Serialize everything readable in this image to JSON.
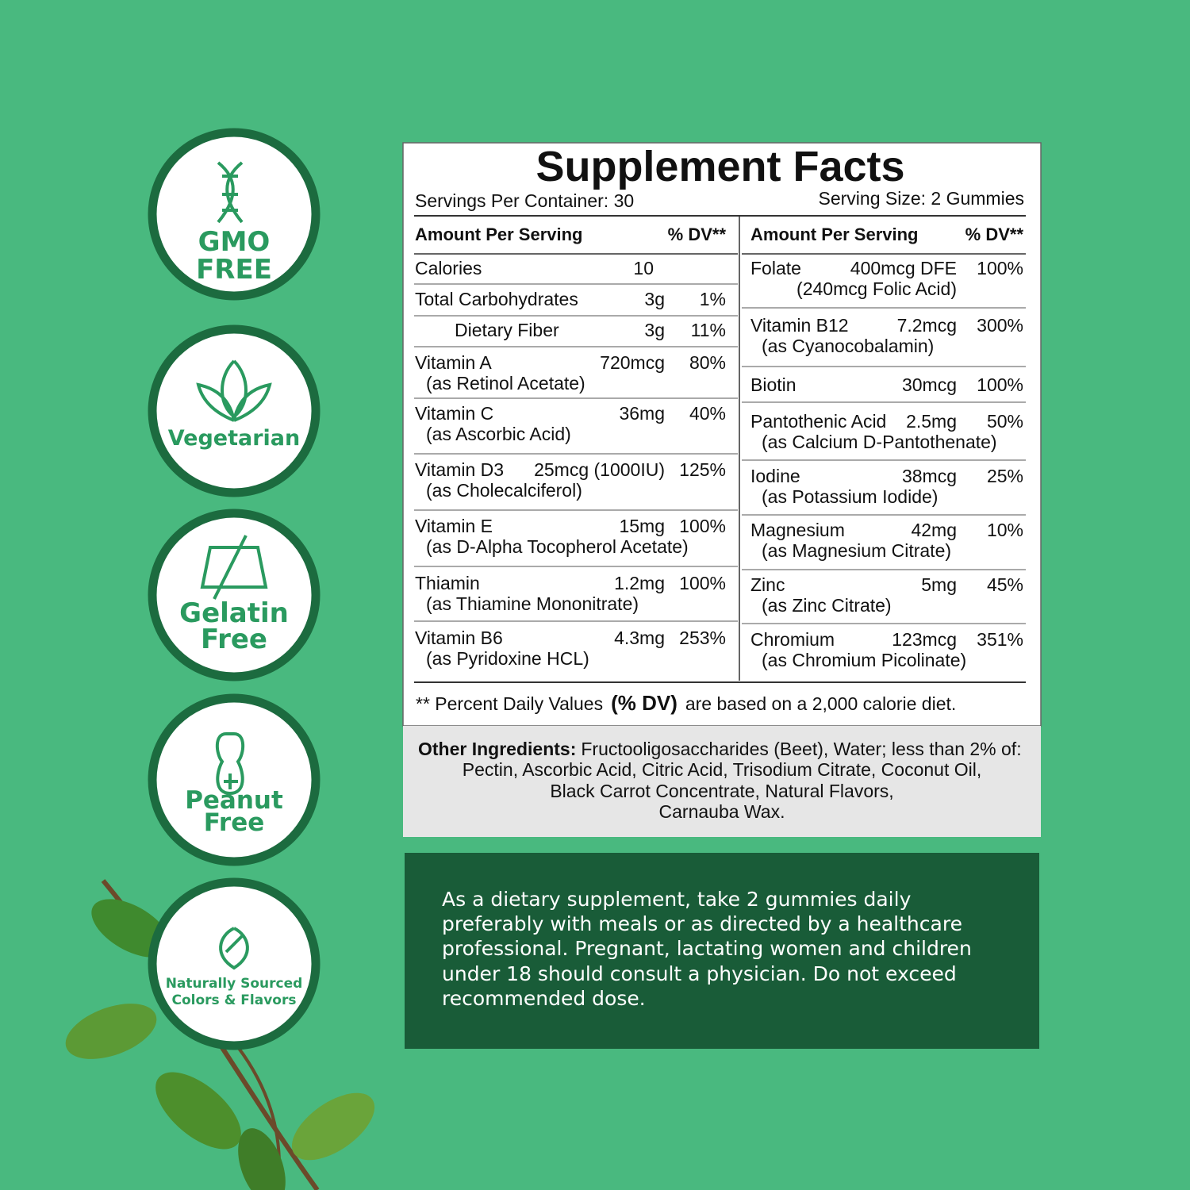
{
  "badges": [
    [
      "GMO",
      "FREE"
    ],
    [
      "Vegetarian"
    ],
    [
      "Gelatin",
      "Free"
    ],
    [
      "Peanut",
      "Free"
    ],
    [
      "Naturally Sourced",
      "Colors & Flavors"
    ]
  ],
  "facts": {
    "title": "Supplement Facts",
    "servings": "Servings Per Container: 30",
    "serving_size": "Serving Size: 2 Gummies",
    "columns": [
      {
        "header": [
          "Amount Per Serving",
          "% DV**"
        ],
        "rows": [
          {
            "name": "Calories",
            "amount": "10"
          },
          {
            "name": "Total Carbohydrates",
            "amount": "3g",
            "dv": "1%"
          },
          {
            "name": "Dietary Fiber",
            "amount": "3g",
            "dv": "11%"
          },
          {
            "name": "Vitamin A",
            "amount": "720mcg",
            "dv": "80%",
            "sub": "(as Retinol Acetate)"
          },
          {
            "name": "Vitamin C",
            "amount": "36mg",
            "dv": "40%",
            "sub": "(as Ascorbic Acid)"
          },
          {
            "name": "Vitamin D3",
            "amount": "25mcg (1000IU)",
            "dv": "125%",
            "sub": "(as Cholecalciferol)"
          },
          {
            "name": "Vitamin E",
            "amount": "15mg",
            "dv": "100%",
            "sub": "(as D-Alpha Tocopherol Acetate)"
          },
          {
            "name": "Thiamin",
            "amount": "1.2mg",
            "dv": "100%",
            "sub": "(as Thiamine Mononitrate)"
          },
          {
            "name": "Vitamin B6",
            "amount": "4.3mg",
            "dv": "253%",
            "sub": "(as Pyridoxine HCL)"
          }
        ]
      },
      {
        "header": [
          "Amount Per Serving",
          "% DV**"
        ],
        "rows": [
          {
            "name": "Folate",
            "amount": "400mcg DFE",
            "dv": "100%",
            "sub": "(240mcg Folic Acid)"
          },
          {
            "name": "Vitamin B12",
            "amount": "7.2mcg",
            "dv": "300%",
            "sub": "(as Cyanocobalamin)"
          },
          {
            "name": "Biotin",
            "amount": "30mcg",
            "dv": "100%"
          },
          {
            "name": "Pantothenic Acid",
            "amount": "2.5mg",
            "dv": "50%",
            "sub": "(as Calcium D-Pantothenate)"
          },
          {
            "name": "Iodine",
            "amount": "38mcg",
            "dv": "25%",
            "sub": "(as Potassium Iodide)"
          },
          {
            "name": "Magnesium",
            "amount": "42mg",
            "dv": "10%",
            "sub": "(as Magnesium Citrate)"
          },
          {
            "name": "Zinc",
            "amount": "5mg",
            "dv": "45%",
            "sub": "(as Zinc Citrate)"
          },
          {
            "name": "Chromium",
            "amount": "123mcg",
            "dv": "351%",
            "sub": "(as Chromium Picolinate)"
          }
        ]
      }
    ],
    "footnote": [
      "** Percent Daily Values",
      "(% DV)",
      "are based on a 2,000 calorie diet."
    ]
  },
  "other_ingredients": {
    "label": "Other Ingredients:",
    "lines": [
      "Fructooligosaccharides (Beet), Water; less than 2% of:",
      "Pectin, Ascorbic Acid, Citric Acid, Trisodium Citrate, Coconut Oil,",
      "Black Carrot Concentrate, Natural Flavors,",
      "Carnauba Wax."
    ]
  },
  "directions": [
    "As a dietary supplement, take 2 gummies daily",
    "preferably with meals or as directed by a healthcare",
    "professional. Pregnant, lactating women and children",
    "under 18 should consult a physician. Do not exceed",
    "recommended dose."
  ]
}
